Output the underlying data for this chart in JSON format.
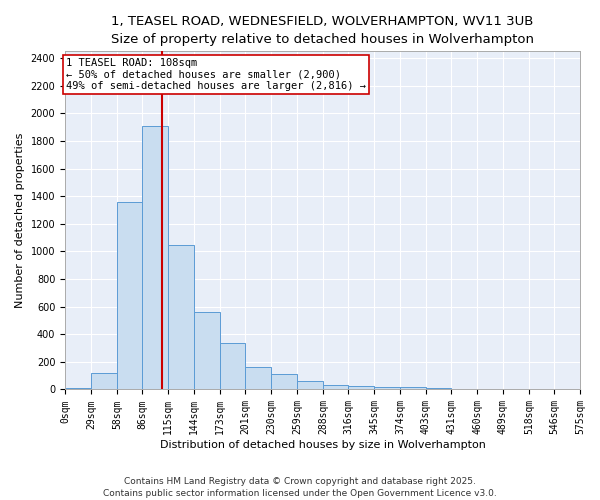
{
  "title1": "1, TEASEL ROAD, WEDNESFIELD, WOLVERHAMPTON, WV11 3UB",
  "title2": "Size of property relative to detached houses in Wolverhampton",
  "xlabel": "Distribution of detached houses by size in Wolverhampton",
  "ylabel": "Number of detached properties",
  "bar_color": "#c9ddf0",
  "bar_edge_color": "#5b9bd5",
  "bg_color": "#e8eef8",
  "grid_color": "#ffffff",
  "annotation_box_color": "#cc0000",
  "vline_color": "#cc0000",
  "annotation_text": "1 TEASEL ROAD: 108sqm\n← 50% of detached houses are smaller (2,900)\n49% of semi-detached houses are larger (2,816) →",
  "property_sqm": 108,
  "bin_edges": [
    0,
    29,
    58,
    86,
    115,
    144,
    173,
    201,
    230,
    259,
    288,
    316,
    345,
    374,
    403,
    431,
    460,
    489,
    518,
    546,
    575
  ],
  "bar_heights": [
    10,
    120,
    1360,
    1910,
    1050,
    560,
    335,
    165,
    110,
    60,
    35,
    25,
    20,
    15,
    10,
    5,
    3,
    3,
    2,
    5
  ],
  "ylim": [
    0,
    2450
  ],
  "yticks": [
    0,
    200,
    400,
    600,
    800,
    1000,
    1200,
    1400,
    1600,
    1800,
    2000,
    2200,
    2400
  ],
  "footer_text": "Contains HM Land Registry data © Crown copyright and database right 2025.\nContains public sector information licensed under the Open Government Licence v3.0.",
  "title_fontsize": 9.5,
  "subtitle_fontsize": 8.5,
  "tick_label_fontsize": 7,
  "axis_label_fontsize": 8,
  "annotation_fontsize": 7.5,
  "footer_fontsize": 6.5
}
